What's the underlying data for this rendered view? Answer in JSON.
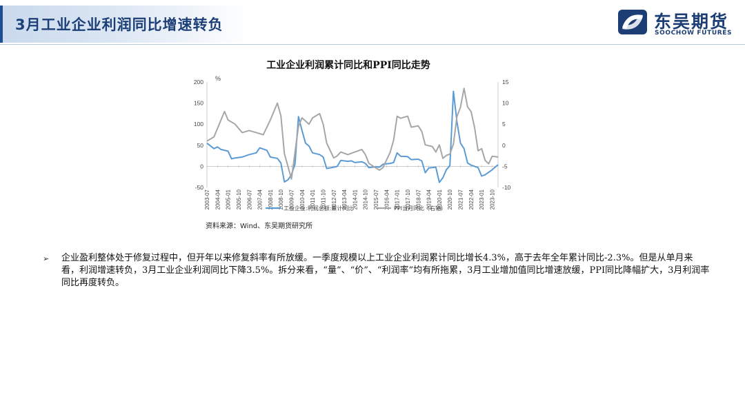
{
  "header": {
    "title": "3月工业企业利润同比增速转负",
    "logo_cn": "东吴期货",
    "logo_en": "SOOCHOW FUTURES"
  },
  "colors": {
    "brand": "#1d3e74",
    "profit_line": "#5b9bd5",
    "ppi_line": "#a6a6a6"
  },
  "chart_data": {
    "type": "line",
    "title": "工业企业利润累计同比和PPI同比走势",
    "ylabel_left": "%",
    "y_left": {
      "min": -50,
      "max": 200,
      "ticks": [
        -50,
        0,
        50,
        100,
        150,
        200
      ]
    },
    "y_right": {
      "min": -10,
      "max": 15,
      "ticks": [
        -10,
        -5,
        0,
        5,
        10,
        15
      ]
    },
    "x_tick_labels": [
      "2003-07",
      "2004-04",
      "2005-01",
      "2005-10",
      "2006-07",
      "2007-04",
      "2008-01",
      "2008-10",
      "2009-07",
      "2010-04",
      "2011-01",
      "2011-10",
      "2012-07",
      "2013-04",
      "2014-01",
      "2014-10",
      "2015-07",
      "2016-04",
      "2017-01",
      "2017-10",
      "2018-07",
      "2019-04",
      "2020-01",
      "2020-10",
      "2021-07",
      "2022-04",
      "2023-01",
      "2023-10"
    ],
    "legend_position": "bottom",
    "series": [
      {
        "name": "工业企业:利润总额:累计同比",
        "axis": "left",
        "color": "#5b9bd5",
        "points": [
          [
            "2003-07",
            55
          ],
          [
            "2004-01",
            42
          ],
          [
            "2004-04",
            46
          ],
          [
            "2004-07",
            40
          ],
          [
            "2005-01",
            36
          ],
          [
            "2005-04",
            18
          ],
          [
            "2005-07",
            20
          ],
          [
            "2006-01",
            22
          ],
          [
            "2006-07",
            28
          ],
          [
            "2007-01",
            32
          ],
          [
            "2007-04",
            44
          ],
          [
            "2007-10",
            38
          ],
          [
            "2008-01",
            22
          ],
          [
            "2008-07",
            19
          ],
          [
            "2008-10",
            8
          ],
          [
            "2009-01",
            -37
          ],
          [
            "2009-04",
            -32
          ],
          [
            "2009-07",
            -20
          ],
          [
            "2009-10",
            5
          ],
          [
            "2010-01",
            118
          ],
          [
            "2010-04",
            85
          ],
          [
            "2010-07",
            55
          ],
          [
            "2010-10",
            48
          ],
          [
            "2011-01",
            32
          ],
          [
            "2011-07",
            28
          ],
          [
            "2011-10",
            22
          ],
          [
            "2012-01",
            -5
          ],
          [
            "2012-07",
            -2
          ],
          [
            "2012-10",
            0
          ],
          [
            "2013-01",
            14
          ],
          [
            "2013-07",
            12
          ],
          [
            "2013-10",
            13
          ],
          [
            "2014-01",
            9
          ],
          [
            "2014-07",
            11
          ],
          [
            "2014-10",
            7
          ],
          [
            "2015-01",
            -3
          ],
          [
            "2015-07",
            -1
          ],
          [
            "2015-10",
            -2
          ],
          [
            "2016-01",
            5
          ],
          [
            "2016-07",
            7
          ],
          [
            "2016-10",
            9
          ],
          [
            "2017-01",
            32
          ],
          [
            "2017-04",
            24
          ],
          [
            "2017-10",
            23
          ],
          [
            "2018-01",
            16
          ],
          [
            "2018-07",
            17
          ],
          [
            "2018-10",
            13
          ],
          [
            "2019-01",
            -15
          ],
          [
            "2019-04",
            -4
          ],
          [
            "2019-10",
            -2
          ],
          [
            "2020-01",
            -38
          ],
          [
            "2020-04",
            -27
          ],
          [
            "2020-07",
            -8
          ],
          [
            "2020-10",
            2
          ],
          [
            "2021-01",
            178
          ],
          [
            "2021-04",
            106
          ],
          [
            "2021-07",
            55
          ],
          [
            "2021-10",
            42
          ],
          [
            "2022-01",
            8
          ],
          [
            "2022-04",
            3
          ],
          [
            "2022-07",
            0
          ],
          [
            "2022-10",
            -3
          ],
          [
            "2023-01",
            -23
          ],
          [
            "2023-04",
            -20
          ],
          [
            "2023-07",
            -14
          ],
          [
            "2023-10",
            -8
          ],
          [
            "2024-03",
            4
          ]
        ]
      },
      {
        "name": "PPI当月同比（右轴）",
        "axis": "right",
        "color": "#a6a6a6",
        "points": [
          [
            "2003-07",
            1
          ],
          [
            "2004-01",
            2
          ],
          [
            "2004-04",
            4
          ],
          [
            "2004-10",
            8
          ],
          [
            "2005-01",
            6
          ],
          [
            "2005-07",
            5
          ],
          [
            "2006-01",
            3
          ],
          [
            "2006-07",
            3.5
          ],
          [
            "2007-01",
            3
          ],
          [
            "2007-07",
            2.5
          ],
          [
            "2008-01",
            6
          ],
          [
            "2008-07",
            10
          ],
          [
            "2008-10",
            7
          ],
          [
            "2009-01",
            -2
          ],
          [
            "2009-07",
            -8
          ],
          [
            "2010-01",
            4.5
          ],
          [
            "2010-04",
            6.5
          ],
          [
            "2010-10",
            5
          ],
          [
            "2011-01",
            6.5
          ],
          [
            "2011-07",
            7.5
          ],
          [
            "2011-10",
            5
          ],
          [
            "2012-01",
            0.5
          ],
          [
            "2012-07",
            -3
          ],
          [
            "2012-10",
            -2.5
          ],
          [
            "2013-01",
            -1.6
          ],
          [
            "2013-07",
            -2.2
          ],
          [
            "2014-01",
            -1.6
          ],
          [
            "2014-07",
            -1
          ],
          [
            "2014-10",
            -2.2
          ],
          [
            "2015-01",
            -4.3
          ],
          [
            "2015-07",
            -5.4
          ],
          [
            "2015-10",
            -5.9
          ],
          [
            "2016-01",
            -5.3
          ],
          [
            "2016-07",
            -1.7
          ],
          [
            "2016-10",
            1.2
          ],
          [
            "2017-01",
            6.9
          ],
          [
            "2017-04",
            6.4
          ],
          [
            "2017-10",
            6.9
          ],
          [
            "2018-01",
            4.3
          ],
          [
            "2018-07",
            4.6
          ],
          [
            "2018-10",
            3.3
          ],
          [
            "2019-01",
            0.1
          ],
          [
            "2019-07",
            -0.3
          ],
          [
            "2019-10",
            -1.6
          ],
          [
            "2020-01",
            0.1
          ],
          [
            "2020-04",
            -3.1
          ],
          [
            "2020-07",
            -2.4
          ],
          [
            "2020-10",
            -2.1
          ],
          [
            "2021-01",
            0.3
          ],
          [
            "2021-04",
            6.8
          ],
          [
            "2021-07",
            9
          ],
          [
            "2021-10",
            13.5
          ],
          [
            "2022-01",
            9.1
          ],
          [
            "2022-04",
            8
          ],
          [
            "2022-07",
            4.2
          ],
          [
            "2022-10",
            -1.3
          ],
          [
            "2023-01",
            -0.8
          ],
          [
            "2023-04",
            -3.6
          ],
          [
            "2023-07",
            -4.4
          ],
          [
            "2023-10",
            -2.6
          ],
          [
            "2024-03",
            -2.8
          ]
        ]
      }
    ]
  },
  "source": "资料来源：Wind、东吴期货研究所",
  "body": {
    "bullet": "➢",
    "text": "企业盈利整体处于修复过程中，但开年以来修复斜率有所放缓。一季度规模以上工业企业利润累计同比增长4.3%，高于去年全年累计同比-2.3%。但是从单月来看，利润增速转负，3月工业企业利润同比下降3.5%。拆分来看，“量”、“价”、“利润率”均有所拖累，3月工业增加值同比增速放缓，PPI同比降幅扩大，3月利润率同比再度转负。"
  }
}
